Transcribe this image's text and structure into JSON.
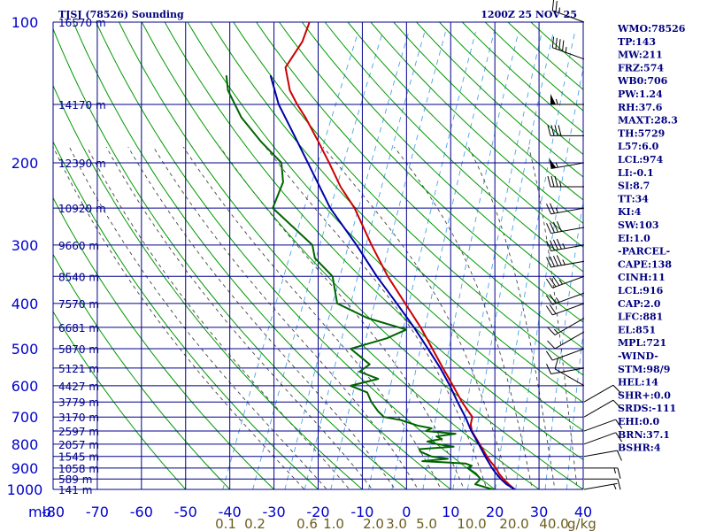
{
  "header": {
    "title": "TJSJ (78526) Sounding",
    "time": "1200Z 25 NOV 25"
  },
  "colors": {
    "grid": "#00008b",
    "axis_text": "#0000cd",
    "dry_adiabat": "#009900",
    "moist_adiabat": "#444444",
    "mixing_ratio": "#4aa3e8",
    "temperature": "#cc0000",
    "dewpoint": "#006400",
    "parcel": "#0000aa",
    "mixing_text": "#6b5d1e",
    "index_text": "#000080"
  },
  "indices": [
    "WMO:78526",
    "TP:143",
    "MW:211",
    "FRZ:574",
    "WB0:706",
    "PW:1.24",
    "RH:37.6",
    "MAXT:28.3",
    "TH:5729",
    "L57:6.0",
    "LCL:974",
    "LI:-0.1",
    "SI:8.7",
    "TT:34",
    "KI:4",
    "SW:103",
    "EI:1.0",
    "-PARCEL-",
    "CAPE:138",
    "CINH:11",
    "LCL:916",
    "CAP:2.0",
    "LFC:881",
    "EL:851",
    "MPL:721",
    "-WIND-",
    "STM:98/9",
    "HEL:14",
    "SHR+:0.0",
    "SRDS:-111",
    "EHI:0.0",
    "BRN:37.1",
    "BSHR:4"
  ],
  "chart_data": {
    "type": "line",
    "subtype": "skew-T log-P",
    "x_axis": {
      "min": -80,
      "max": 40,
      "ticks": [
        -80,
        -70,
        -60,
        -50,
        -40,
        -30,
        -20,
        -10,
        0,
        10,
        20,
        30,
        40
      ],
      "tick_labels": [
        "-80",
        "-70",
        "-60",
        "-50",
        "-40",
        "-30",
        "-20",
        "-10",
        "0",
        "10",
        "20",
        "30",
        "40"
      ],
      "unit_label": "mb"
    },
    "y_axis": {
      "scale": "log",
      "min": 100,
      "max": 1000,
      "ticks": [
        100,
        200,
        300,
        400,
        500,
        600,
        700,
        800,
        900,
        1000
      ],
      "tick_labels": [
        "100",
        "200",
        "300",
        "400",
        "500",
        "600",
        "700",
        "800",
        "900",
        "1000"
      ]
    },
    "height_levels": [
      {
        "p": 100,
        "label": "16570 m"
      },
      {
        "p": 150,
        "label": "14170 m"
      },
      {
        "p": 200,
        "label": "12390 m"
      },
      {
        "p": 250,
        "label": "10920 m"
      },
      {
        "p": 300,
        "label": "9660 m"
      },
      {
        "p": 350,
        "label": "8540 m"
      },
      {
        "p": 400,
        "label": "7570 m"
      },
      {
        "p": 450,
        "label": "6681 m"
      },
      {
        "p": 500,
        "label": "5870 m"
      },
      {
        "p": 550,
        "label": "5121 m"
      },
      {
        "p": 600,
        "label": "4427 m"
      },
      {
        "p": 650,
        "label": "3779 m"
      },
      {
        "p": 700,
        "label": "3170 m"
      },
      {
        "p": 750,
        "label": "2597 m"
      },
      {
        "p": 800,
        "label": "2057 m"
      },
      {
        "p": 850,
        "label": "1545 m"
      },
      {
        "p": 900,
        "label": "1058 m"
      },
      {
        "p": 950,
        "label": "589 m"
      },
      {
        "p": 1000,
        "label": "141 m"
      }
    ],
    "mixing_ratio_labels": [
      {
        "label": "0.1",
        "value": 0.1
      },
      {
        "label": "0.2",
        "value": 0.2
      },
      {
        "label": "0.6",
        "value": 0.6
      },
      {
        "label": "1.0",
        "value": 1.0
      },
      {
        "label": "2.0",
        "value": 2.0
      },
      {
        "label": "3.0",
        "value": 3.0
      },
      {
        "label": "5.0",
        "value": 5.0
      },
      {
        "label": "10.0",
        "value": 10.0
      },
      {
        "label": "20.0",
        "value": 20.0
      },
      {
        "label": "40.0",
        "value": 40.0
      }
    ],
    "mixing_ratio_unit": "g/kg",
    "series": [
      {
        "key": "temperature",
        "points": [
          [
            1013,
            25.5
          ],
          [
            1000,
            24.5
          ],
          [
            975,
            22.6
          ],
          [
            950,
            20.8
          ],
          [
            925,
            19.2
          ],
          [
            900,
            17.9
          ],
          [
            875,
            16.2
          ],
          [
            850,
            14.6
          ],
          [
            800,
            11.6
          ],
          [
            750,
            8.4
          ],
          [
            725,
            7.4
          ],
          [
            700,
            7.0
          ],
          [
            650,
            3.0
          ],
          [
            600,
            -0.8
          ],
          [
            550,
            -5.0
          ],
          [
            500,
            -9.5
          ],
          [
            450,
            -14.5
          ],
          [
            400,
            -20.6
          ],
          [
            350,
            -27.5
          ],
          [
            300,
            -34.6
          ],
          [
            250,
            -42.5
          ],
          [
            225,
            -48.0
          ],
          [
            200,
            -53.2
          ],
          [
            180,
            -58.0
          ],
          [
            160,
            -63.5
          ],
          [
            150,
            -66.8
          ],
          [
            140,
            -70.0
          ],
          [
            125,
            -73.5
          ],
          [
            110,
            -72.5
          ],
          [
            100,
            -73.0
          ]
        ]
      },
      {
        "key": "dewpoint",
        "points": [
          [
            1013,
            20.5
          ],
          [
            1000,
            19.5
          ],
          [
            975,
            15.0
          ],
          [
            950,
            15.6
          ],
          [
            925,
            14.0
          ],
          [
            900,
            11.5
          ],
          [
            890,
            12.2
          ],
          [
            880,
            10.5
          ],
          [
            870,
            0.5
          ],
          [
            860,
            6.0
          ],
          [
            850,
            2.0
          ],
          [
            830,
            -1.0
          ],
          [
            820,
            -1.5
          ],
          [
            810,
            6.0
          ],
          [
            800,
            2.0
          ],
          [
            790,
            -0.5
          ],
          [
            780,
            2.5
          ],
          [
            770,
            1.0
          ],
          [
            760,
            5.0
          ],
          [
            750,
            -2.0
          ],
          [
            740,
            -1.0
          ],
          [
            730,
            -4.5
          ],
          [
            710,
            -9.0
          ],
          [
            700,
            -13.0
          ],
          [
            680,
            -15.0
          ],
          [
            650,
            -17.5
          ],
          [
            620,
            -19.5
          ],
          [
            600,
            -24.0
          ],
          [
            580,
            -18.5
          ],
          [
            560,
            -23.5
          ],
          [
            540,
            -22.0
          ],
          [
            500,
            -28.0
          ],
          [
            475,
            -21.0
          ],
          [
            455,
            -17.5
          ],
          [
            430,
            -27.5
          ],
          [
            400,
            -36.0
          ],
          [
            350,
            -40.0
          ],
          [
            320,
            -46.0
          ],
          [
            300,
            -48.0
          ],
          [
            250,
            -61.0
          ],
          [
            220,
            -61.5
          ],
          [
            200,
            -64.0
          ],
          [
            180,
            -71.0
          ],
          [
            160,
            -78.0
          ],
          [
            140,
            -84.0
          ],
          [
            130,
            -86.0
          ]
        ]
      },
      {
        "key": "parcel",
        "points": [
          [
            1013,
            26.0
          ],
          [
            1000,
            24.5
          ],
          [
            974,
            22.0
          ],
          [
            950,
            20.2
          ],
          [
            916,
            18.0
          ],
          [
            900,
            17.0
          ],
          [
            850,
            14.2
          ],
          [
            800,
            11.4
          ],
          [
            750,
            8.3
          ],
          [
            700,
            5.4
          ],
          [
            650,
            2.0
          ],
          [
            600,
            -1.5
          ],
          [
            550,
            -5.6
          ],
          [
            500,
            -10.5
          ],
          [
            450,
            -16.0
          ],
          [
            400,
            -22.5
          ],
          [
            350,
            -30.0
          ],
          [
            300,
            -38.0
          ],
          [
            250,
            -48.0
          ],
          [
            200,
            -58.0
          ],
          [
            175,
            -64.0
          ],
          [
            150,
            -71.0
          ],
          [
            130,
            -76.0
          ]
        ]
      }
    ],
    "wind_barbs": [
      {
        "p": 100,
        "dir": 290,
        "spd": 25
      },
      {
        "p": 120,
        "dir": 290,
        "spd": 45
      },
      {
        "p": 150,
        "dir": 270,
        "spd": 55
      },
      {
        "p": 175,
        "dir": 270,
        "spd": 40
      },
      {
        "p": 200,
        "dir": 260,
        "spd": 55
      },
      {
        "p": 225,
        "dir": 270,
        "spd": 35
      },
      {
        "p": 250,
        "dir": 260,
        "spd": 25
      },
      {
        "p": 275,
        "dir": 260,
        "spd": 40
      },
      {
        "p": 300,
        "dir": 260,
        "spd": 45
      },
      {
        "p": 325,
        "dir": 260,
        "spd": 45
      },
      {
        "p": 350,
        "dir": 250,
        "spd": 35
      },
      {
        "p": 380,
        "dir": 250,
        "spd": 25
      },
      {
        "p": 400,
        "dir": 250,
        "spd": 20
      },
      {
        "p": 430,
        "dir": 240,
        "spd": 15
      },
      {
        "p": 460,
        "dir": 240,
        "spd": 10
      },
      {
        "p": 500,
        "dir": 250,
        "spd": 10
      },
      {
        "p": 550,
        "dir": 260,
        "spd": 10
      },
      {
        "p": 600,
        "dir": 300,
        "spd": 10
      },
      {
        "p": 650,
        "dir": 60,
        "spd": 10
      },
      {
        "p": 700,
        "dir": 60,
        "spd": 10
      },
      {
        "p": 750,
        "dir": 70,
        "spd": 10
      },
      {
        "p": 800,
        "dir": 70,
        "spd": 10
      },
      {
        "p": 850,
        "dir": 80,
        "spd": 10
      },
      {
        "p": 900,
        "dir": 90,
        "spd": 15
      },
      {
        "p": 950,
        "dir": 90,
        "spd": 10
      },
      {
        "p": 1000,
        "dir": 80,
        "spd": 5
      }
    ]
  }
}
